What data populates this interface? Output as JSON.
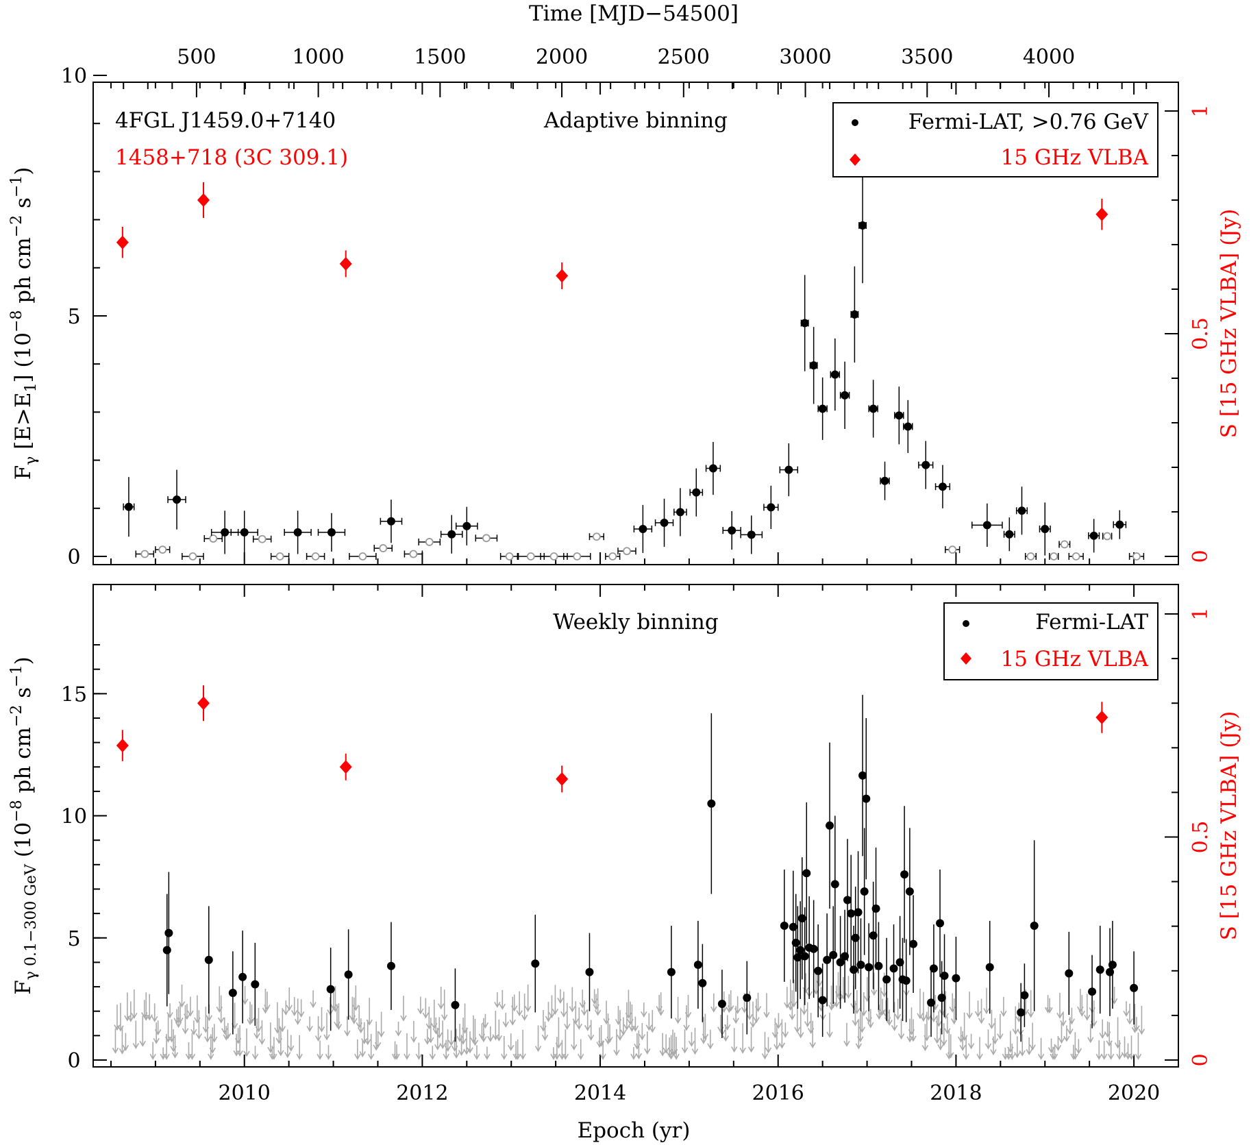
{
  "figure": {
    "top_axis_label": "Time [MJD−54500]",
    "bottom_axis_label": "Epoch (yr)"
  },
  "colors": {
    "fermi": "#000000",
    "vlba": "#ff0000",
    "upper_limit": "#aaaaaa",
    "open_marker": "#999999"
  },
  "chart_data": [
    {
      "type": "scatter",
      "panel": "top",
      "source_name": "4FGL J1459.0+7140",
      "radio_name": "1458+718 (3C 309.1)",
      "binning_label": "Adaptive binning",
      "ylabel_main": "F",
      "ylabel_sub": "γ",
      "ylabel_rest_a": " [E>E",
      "ylabel_rest_sub": "1",
      "ylabel_rest_b": "] (10",
      "ylabel_exp1": "−8",
      "ylabel_mid": " ph cm",
      "ylabel_exp2": "−2",
      "ylabel_s": " s",
      "ylabel_exp3": "−1",
      "ylabel_end": ")",
      "y2label": "S [15 GHz VLBA] (Jy)",
      "ylim": [
        0,
        10
      ],
      "y2lim": [
        0,
        1.0
      ],
      "yticks": [
        "0",
        "5",
        "10"
      ],
      "y2ticks": [
        "0",
        "0.5",
        "1"
      ],
      "mjd_ticks": [
        "500",
        "1000",
        "1500",
        "2000",
        "2500",
        "3000",
        "3500",
        "4000"
      ],
      "legend": {
        "placement": "top-right",
        "fermi": "Fermi-LAT, >0.76 GeV",
        "vlba": "15 GHz VLBA"
      },
      "fermi_detections": [
        {
          "t": 2008.7,
          "y": 1.03,
          "xe": 0.06,
          "ye": 0.62
        },
        {
          "t": 2009.24,
          "y": 1.18,
          "xe": 0.1,
          "ye": 0.62
        },
        {
          "t": 2009.78,
          "y": 0.5,
          "xe": 0.15,
          "ye": 0.45
        },
        {
          "t": 2010.0,
          "y": 0.5,
          "xe": 0.15,
          "ye": 0.45
        },
        {
          "t": 2010.6,
          "y": 0.5,
          "xe": 0.15,
          "ye": 0.45
        },
        {
          "t": 2010.98,
          "y": 0.5,
          "xe": 0.15,
          "ye": 0.4
        },
        {
          "t": 2011.65,
          "y": 0.73,
          "xe": 0.12,
          "ye": 0.45
        },
        {
          "t": 2012.33,
          "y": 0.46,
          "xe": 0.12,
          "ye": 0.4
        },
        {
          "t": 2012.5,
          "y": 0.63,
          "xe": 0.12,
          "ye": 0.4
        },
        {
          "t": 2014.48,
          "y": 0.57,
          "xe": 0.1,
          "ye": 0.5
        },
        {
          "t": 2014.72,
          "y": 0.7,
          "xe": 0.1,
          "ye": 0.5
        },
        {
          "t": 2014.9,
          "y": 0.92,
          "xe": 0.07,
          "ye": 0.5
        },
        {
          "t": 2015.08,
          "y": 1.33,
          "xe": 0.07,
          "ye": 0.5
        },
        {
          "t": 2015.27,
          "y": 1.83,
          "xe": 0.08,
          "ye": 0.55
        },
        {
          "t": 2015.48,
          "y": 0.54,
          "xe": 0.1,
          "ye": 0.4
        },
        {
          "t": 2015.7,
          "y": 0.45,
          "xe": 0.12,
          "ye": 0.4
        },
        {
          "t": 2015.92,
          "y": 1.02,
          "xe": 0.08,
          "ye": 0.45
        },
        {
          "t": 2016.12,
          "y": 1.8,
          "xe": 0.1,
          "ye": 0.55
        },
        {
          "t": 2016.3,
          "y": 4.85,
          "xe": 0.04,
          "ye": 1.0
        },
        {
          "t": 2016.4,
          "y": 3.97,
          "xe": 0.04,
          "ye": 0.8
        },
        {
          "t": 2016.5,
          "y": 3.07,
          "xe": 0.05,
          "ye": 0.65
        },
        {
          "t": 2016.64,
          "y": 3.78,
          "xe": 0.05,
          "ye": 0.75
        },
        {
          "t": 2016.75,
          "y": 3.35,
          "xe": 0.05,
          "ye": 0.7
        },
        {
          "t": 2016.86,
          "y": 5.03,
          "xe": 0.04,
          "ye": 1.0
        },
        {
          "t": 2016.95,
          "y": 6.88,
          "xe": 0.04,
          "ye": 1.2
        },
        {
          "t": 2017.07,
          "y": 3.07,
          "xe": 0.05,
          "ye": 0.6
        },
        {
          "t": 2017.2,
          "y": 1.57,
          "xe": 0.05,
          "ye": 0.4
        },
        {
          "t": 2017.36,
          "y": 2.93,
          "xe": 0.05,
          "ye": 0.6
        },
        {
          "t": 2017.46,
          "y": 2.7,
          "xe": 0.05,
          "ye": 0.55
        },
        {
          "t": 2017.66,
          "y": 1.9,
          "xe": 0.08,
          "ye": 0.5
        },
        {
          "t": 2017.85,
          "y": 1.45,
          "xe": 0.08,
          "ye": 0.45
        },
        {
          "t": 2018.35,
          "y": 0.65,
          "xe": 0.17,
          "ye": 0.45
        },
        {
          "t": 2018.6,
          "y": 0.46,
          "xe": 0.06,
          "ye": 0.35
        },
        {
          "t": 2018.74,
          "y": 0.95,
          "xe": 0.06,
          "ye": 0.5
        },
        {
          "t": 2019.0,
          "y": 0.57,
          "xe": 0.06,
          "ye": 0.55
        },
        {
          "t": 2019.55,
          "y": 0.43,
          "xe": 0.06,
          "ye": 0.35
        },
        {
          "t": 2019.84,
          "y": 0.66,
          "xe": 0.07,
          "ye": 0.3
        }
      ],
      "fermi_low_points": [
        {
          "t": 2008.88,
          "y": 0.05,
          "xe": 0.1
        },
        {
          "t": 2009.08,
          "y": 0.14,
          "xe": 0.08
        },
        {
          "t": 2009.42,
          "y": 0.0,
          "xe": 0.12
        },
        {
          "t": 2009.65,
          "y": 0.37,
          "xe": 0.1
        },
        {
          "t": 2010.2,
          "y": 0.36,
          "xe": 0.1
        },
        {
          "t": 2010.4,
          "y": 0.0,
          "xe": 0.1
        },
        {
          "t": 2010.8,
          "y": 0.0,
          "xe": 0.1
        },
        {
          "t": 2011.33,
          "y": 0.0,
          "xe": 0.15
        },
        {
          "t": 2011.56,
          "y": 0.17,
          "xe": 0.1
        },
        {
          "t": 2011.9,
          "y": 0.05,
          "xe": 0.1
        },
        {
          "t": 2012.08,
          "y": 0.3,
          "xe": 0.12
        },
        {
          "t": 2012.72,
          "y": 0.38,
          "xe": 0.12
        },
        {
          "t": 2012.98,
          "y": 0.0,
          "xe": 0.1
        },
        {
          "t": 2013.22,
          "y": 0.0,
          "xe": 0.15
        },
        {
          "t": 2013.48,
          "y": 0.0,
          "xe": 0.15
        },
        {
          "t": 2013.74,
          "y": 0.0,
          "xe": 0.15
        },
        {
          "t": 2013.96,
          "y": 0.41,
          "xe": 0.08
        },
        {
          "t": 2014.14,
          "y": 0.0,
          "xe": 0.08
        },
        {
          "t": 2014.3,
          "y": 0.11,
          "xe": 0.1
        },
        {
          "t": 2017.96,
          "y": 0.14,
          "xe": 0.08
        },
        {
          "t": 2018.84,
          "y": 0.0,
          "xe": 0.06
        },
        {
          "t": 2019.1,
          "y": 0.0,
          "xe": 0.05
        },
        {
          "t": 2019.22,
          "y": 0.25,
          "xe": 0.06
        },
        {
          "t": 2019.35,
          "y": 0.0,
          "xe": 0.08
        },
        {
          "t": 2019.7,
          "y": 0.42,
          "xe": 0.05
        },
        {
          "t": 2020.03,
          "y": 0.0,
          "xe": 0.08
        }
      ],
      "vlba": [
        {
          "t": 2008.63,
          "s": 0.705,
          "e": 0.035
        },
        {
          "t": 2009.54,
          "s": 0.8,
          "e": 0.04
        },
        {
          "t": 2011.14,
          "s": 0.657,
          "e": 0.03
        },
        {
          "t": 2013.57,
          "s": 0.63,
          "e": 0.03
        },
        {
          "t": 2019.64,
          "s": 0.768,
          "e": 0.035
        }
      ]
    },
    {
      "type": "scatter",
      "panel": "bottom",
      "binning_label": "Weekly binning",
      "ylabel_main": "F",
      "ylabel_sub": "γ 0.1−300 GeV",
      "ylabel_rest_a": " (10",
      "ylabel_exp1": "−8",
      "ylabel_mid": " ph cm",
      "ylabel_exp2": "−2",
      "ylabel_s": " s",
      "ylabel_exp3": "−1",
      "ylabel_end": ")",
      "y2label": "S [15 GHz VLBA] (Jy)",
      "xlabel": "Epoch (yr)",
      "xlim": [
        2008.3,
        2020.5
      ],
      "ylim": [
        0,
        19
      ],
      "y2lim": [
        0,
        1.0
      ],
      "yticks": [
        "0",
        "5",
        "10",
        "15"
      ],
      "y2ticks": [
        "0",
        "0.5",
        "1"
      ],
      "xticks": [
        "2010",
        "2012",
        "2014",
        "2016",
        "2018",
        "2020"
      ],
      "legend": {
        "placement": "top-right",
        "fermi": "Fermi-LAT",
        "vlba": "15 GHz VLBA"
      },
      "fermi_detections": [
        {
          "t": 2009.13,
          "y": 4.5,
          "ye": 2.3
        },
        {
          "t": 2009.15,
          "y": 5.2,
          "ye": 2.5
        },
        {
          "t": 2009.6,
          "y": 4.1,
          "ye": 2.2
        },
        {
          "t": 2009.87,
          "y": 2.75,
          "ye": 1.7
        },
        {
          "t": 2009.98,
          "y": 3.4,
          "ye": 1.9
        },
        {
          "t": 2010.12,
          "y": 3.1,
          "ye": 1.7
        },
        {
          "t": 2010.97,
          "y": 2.9,
          "ye": 1.7
        },
        {
          "t": 2011.17,
          "y": 3.5,
          "ye": 1.85
        },
        {
          "t": 2011.65,
          "y": 3.85,
          "ye": 1.8
        },
        {
          "t": 2012.37,
          "y": 2.25,
          "ye": 1.5
        },
        {
          "t": 2013.27,
          "y": 3.95,
          "ye": 2.0
        },
        {
          "t": 2013.88,
          "y": 3.6,
          "ye": 1.6
        },
        {
          "t": 2014.8,
          "y": 3.6,
          "ye": 1.9
        },
        {
          "t": 2015.1,
          "y": 3.9,
          "ye": 1.8
        },
        {
          "t": 2015.15,
          "y": 3.15,
          "ye": 1.6
        },
        {
          "t": 2015.25,
          "y": 10.5,
          "ye": 3.7
        },
        {
          "t": 2015.37,
          "y": 2.3,
          "ye": 1.4
        },
        {
          "t": 2015.65,
          "y": 2.55,
          "ye": 1.5
        },
        {
          "t": 2016.07,
          "y": 5.5,
          "ye": 2.3
        },
        {
          "t": 2016.17,
          "y": 5.45,
          "ye": 2.3
        },
        {
          "t": 2016.2,
          "y": 4.8,
          "ye": 2.0
        },
        {
          "t": 2016.22,
          "y": 4.2,
          "ye": 2.1
        },
        {
          "t": 2016.25,
          "y": 4.5,
          "ye": 2.0
        },
        {
          "t": 2016.27,
          "y": 5.8,
          "ye": 2.5
        },
        {
          "t": 2016.3,
          "y": 4.25,
          "ye": 2.0
        },
        {
          "t": 2016.32,
          "y": 7.65,
          "ye": 2.9
        },
        {
          "t": 2016.35,
          "y": 4.6,
          "ye": 2.1
        },
        {
          "t": 2016.4,
          "y": 4.55,
          "ye": 2.0
        },
        {
          "t": 2016.45,
          "y": 3.65,
          "ye": 1.9
        },
        {
          "t": 2016.5,
          "y": 2.45,
          "ye": 1.5
        },
        {
          "t": 2016.55,
          "y": 4.1,
          "ye": 1.9
        },
        {
          "t": 2016.58,
          "y": 9.6,
          "ye": 3.4
        },
        {
          "t": 2016.62,
          "y": 4.3,
          "ye": 2.0
        },
        {
          "t": 2016.64,
          "y": 7.2,
          "ye": 2.8
        },
        {
          "t": 2016.7,
          "y": 4.0,
          "ye": 1.9
        },
        {
          "t": 2016.75,
          "y": 4.25,
          "ye": 1.9
        },
        {
          "t": 2016.78,
          "y": 6.55,
          "ye": 2.5
        },
        {
          "t": 2016.82,
          "y": 6.0,
          "ye": 2.4
        },
        {
          "t": 2016.85,
          "y": 3.7,
          "ye": 1.8
        },
        {
          "t": 2016.87,
          "y": 5.0,
          "ye": 2.1
        },
        {
          "t": 2016.9,
          "y": 6.05,
          "ye": 2.5
        },
        {
          "t": 2016.93,
          "y": 3.9,
          "ye": 1.9
        },
        {
          "t": 2016.95,
          "y": 11.65,
          "ye": 3.3
        },
        {
          "t": 2016.97,
          "y": 6.9,
          "ye": 2.6
        },
        {
          "t": 2016.99,
          "y": 10.7,
          "ye": 3.3
        },
        {
          "t": 2017.02,
          "y": 3.8,
          "ye": 1.8
        },
        {
          "t": 2017.07,
          "y": 5.1,
          "ye": 2.2
        },
        {
          "t": 2017.1,
          "y": 6.2,
          "ye": 2.5
        },
        {
          "t": 2017.13,
          "y": 3.85,
          "ye": 1.8
        },
        {
          "t": 2017.22,
          "y": 3.3,
          "ye": 1.7
        },
        {
          "t": 2017.3,
          "y": 3.75,
          "ye": 1.8
        },
        {
          "t": 2017.37,
          "y": 4.0,
          "ye": 1.9
        },
        {
          "t": 2017.4,
          "y": 3.3,
          "ye": 1.7
        },
        {
          "t": 2017.42,
          "y": 7.6,
          "ye": 2.8
        },
        {
          "t": 2017.44,
          "y": 3.25,
          "ye": 1.7
        },
        {
          "t": 2017.48,
          "y": 6.9,
          "ye": 2.6
        },
        {
          "t": 2017.52,
          "y": 4.75,
          "ye": 2.0
        },
        {
          "t": 2017.72,
          "y": 2.35,
          "ye": 1.4
        },
        {
          "t": 2017.75,
          "y": 3.75,
          "ye": 1.8
        },
        {
          "t": 2017.82,
          "y": 5.6,
          "ye": 2.2
        },
        {
          "t": 2017.84,
          "y": 2.55,
          "ye": 1.5
        },
        {
          "t": 2017.87,
          "y": 3.45,
          "ye": 1.7
        },
        {
          "t": 2018.0,
          "y": 3.35,
          "ye": 1.7
        },
        {
          "t": 2018.38,
          "y": 3.8,
          "ye": 1.9
        },
        {
          "t": 2018.73,
          "y": 1.95,
          "ye": 1.2
        },
        {
          "t": 2018.77,
          "y": 2.65,
          "ye": 1.3
        },
        {
          "t": 2018.88,
          "y": 5.5,
          "ye": 3.5
        },
        {
          "t": 2019.27,
          "y": 3.55,
          "ye": 1.7
        },
        {
          "t": 2019.53,
          "y": 2.8,
          "ye": 1.5
        },
        {
          "t": 2019.62,
          "y": 3.7,
          "ye": 1.8
        },
        {
          "t": 2019.73,
          "y": 3.6,
          "ye": 1.8
        },
        {
          "t": 2019.76,
          "y": 3.9,
          "ye": 1.8
        },
        {
          "t": 2020.0,
          "y": 2.95,
          "ye": 1.5
        }
      ],
      "upper_limit_seeds": [
        2008.55,
        2020.1
      ],
      "vlba": [
        {
          "t": 2008.63,
          "s": 0.705,
          "e": 0.035
        },
        {
          "t": 2009.54,
          "s": 0.8,
          "e": 0.04
        },
        {
          "t": 2011.14,
          "s": 0.657,
          "e": 0.03
        },
        {
          "t": 2013.57,
          "s": 0.63,
          "e": 0.03
        },
        {
          "t": 2019.64,
          "s": 0.768,
          "e": 0.035
        }
      ]
    }
  ]
}
